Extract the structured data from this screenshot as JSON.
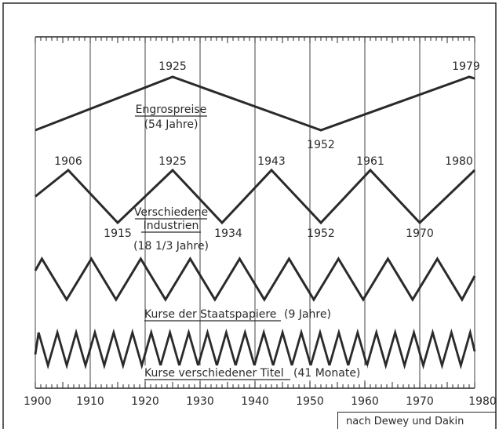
{
  "source_note": "nach Dewey und Dakin",
  "chart_data": {
    "type": "line",
    "x_range": [
      1900,
      1980
    ],
    "x_ticks": [
      1900,
      1910,
      1920,
      1930,
      1940,
      1950,
      1960,
      1970,
      1980
    ],
    "grid": true,
    "series": [
      {
        "name": "Engrospreise",
        "period_label": "(54 Jahre)",
        "points": [
          [
            1900,
            0
          ],
          [
            1925,
            1
          ],
          [
            1952,
            0
          ],
          [
            1979,
            1
          ],
          [
            1980,
            0.97
          ]
        ],
        "extreme_labels": [
          "1925",
          "1952",
          "1979"
        ]
      },
      {
        "name": "Verschiedene Industrien",
        "period_label": "(18 1/3 Jahre)",
        "points": [
          [
            1900,
            0.5
          ],
          [
            1906,
            1
          ],
          [
            1915,
            0
          ],
          [
            1925,
            1
          ],
          [
            1934,
            0
          ],
          [
            1943,
            1
          ],
          [
            1952,
            0
          ],
          [
            1961,
            1
          ],
          [
            1970,
            0
          ],
          [
            1980,
            1
          ]
        ],
        "extreme_labels": [
          "1906",
          "1915",
          "1925",
          "1934",
          "1943",
          "1952",
          "1961",
          "1970",
          "1980"
        ]
      },
      {
        "name": "Kurse der Staatspapiere",
        "period_label": "(9 Jahre)",
        "period_years": 9
      },
      {
        "name": "Kurse verschiedener Titel",
        "period_label": "(41 Monate)",
        "period_years": 3.4167
      }
    ]
  }
}
